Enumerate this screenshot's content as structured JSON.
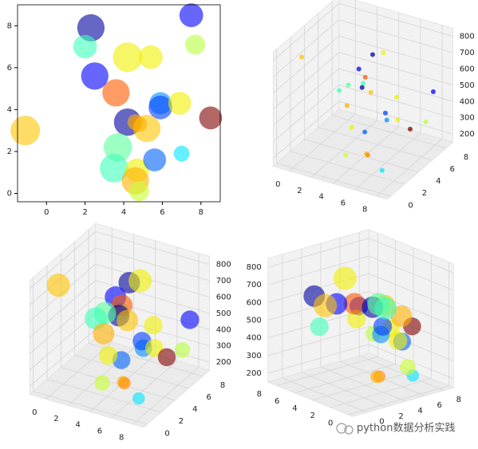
{
  "chart_data": [
    {
      "type": "scatter",
      "xlim": [
        -1.5,
        9
      ],
      "ylim": [
        -0.4,
        9
      ],
      "xticks": [
        0,
        2,
        4,
        6,
        8
      ],
      "yticks": [
        0,
        2,
        4,
        6,
        8
      ],
      "x": [
        2.3,
        7.5,
        2.0,
        7.7,
        2.5,
        4.2,
        5.4,
        3.6,
        5.9,
        5.9,
        6.9,
        8.5,
        4.2,
        4.6,
        4.8,
        5.2,
        -1.1,
        3.7,
        7.0,
        3.5,
        4.7,
        5.6,
        4.6,
        4.8
      ],
      "y": [
        7.9,
        8.5,
        7.0,
        7.1,
        5.6,
        6.5,
        6.5,
        4.8,
        4.3,
        4.1,
        4.3,
        3.6,
        3.4,
        3.4,
        3.3,
        3.1,
        3.0,
        2.2,
        1.9,
        1.2,
        1.1,
        1.6,
        0.6,
        0.1
      ],
      "sizes": [
        600,
        450,
        450,
        320,
        600,
        700,
        450,
        600,
        400,
        450,
        420,
        420,
        600,
        200,
        200,
        600,
        700,
        650,
        200,
        650,
        450,
        420,
        600,
        320
      ],
      "colors": [
        "#00009f",
        "#0000ff",
        "#3dffb9",
        "#b9ff3d",
        "#0000ff",
        "#f0f000",
        "#f0f000",
        "#ff5a00",
        "#0090ff",
        "#0040ff",
        "#f0f000",
        "#800000",
        "#00009f",
        "#ffb000",
        "#ff8c00",
        "#ffc400",
        "#ffc400",
        "#5aff9c",
        "#00e4ff",
        "#3dffb9",
        "#f0f000",
        "#0060ff",
        "#ffb000",
        "#c8ff2e"
      ]
    },
    {
      "type": "scatter3d",
      "elev": 30,
      "azim": -60,
      "xlim": [
        -1.5,
        9
      ],
      "ylim": [
        -0.5,
        9
      ],
      "zlim": [
        150,
        850
      ],
      "xticks": [
        0,
        2,
        4,
        6,
        8
      ],
      "yticks": [
        0,
        2,
        4,
        6,
        8
      ],
      "zticks": [
        200,
        300,
        400,
        500,
        600,
        700,
        800
      ],
      "x": [
        2.3,
        7.5,
        2.0,
        7.7,
        2.5,
        4.2,
        5.4,
        3.6,
        5.9,
        5.9,
        6.9,
        8.5,
        4.2,
        4.6,
        4.8,
        5.2,
        -1.1,
        3.7,
        7.0,
        3.5,
        4.7,
        5.6,
        4.6,
        4.8
      ],
      "y": [
        7.9,
        8.5,
        7.0,
        7.1,
        5.6,
        6.5,
        6.5,
        4.8,
        4.3,
        4.1,
        4.3,
        3.6,
        3.4,
        3.4,
        3.3,
        3.1,
        3.0,
        2.2,
        1.9,
        1.2,
        1.1,
        1.6,
        0.6,
        0.1
      ],
      "z": [
        600,
        450,
        450,
        320,
        600,
        700,
        450,
        600,
        400,
        450,
        420,
        420,
        600,
        200,
        200,
        600,
        700,
        650,
        200,
        650,
        450,
        420,
        600,
        320
      ],
      "colors": [
        "#00009f",
        "#0000ff",
        "#3dffb9",
        "#b9ff3d",
        "#0000ff",
        "#f0f000",
        "#f0f000",
        "#ff5a00",
        "#0090ff",
        "#0040ff",
        "#f0f000",
        "#800000",
        "#00009f",
        "#ffb000",
        "#ff8c00",
        "#ffc400",
        "#ffc400",
        "#5aff9c",
        "#00e4ff",
        "#3dffb9",
        "#f0f000",
        "#0060ff",
        "#ffb000",
        "#c8ff2e"
      ]
    },
    {
      "type": "scatter3d",
      "elev": 30,
      "azim": -60,
      "xlim": [
        -1.5,
        9
      ],
      "ylim": [
        -0.5,
        9
      ],
      "zlim": [
        150,
        850
      ],
      "xticks": [
        0,
        2,
        4,
        6,
        8
      ],
      "yticks": [
        0,
        2,
        4,
        6,
        8
      ],
      "zticks": [
        200,
        300,
        400,
        500,
        600,
        700,
        800
      ],
      "x": [
        2.3,
        7.5,
        2.0,
        7.7,
        2.5,
        4.2,
        5.4,
        3.6,
        5.9,
        5.9,
        6.9,
        8.5,
        4.2,
        4.6,
        4.8,
        5.2,
        -1.1,
        3.7,
        7.0,
        3.5,
        4.7,
        5.6,
        4.6,
        4.8
      ],
      "y": [
        7.9,
        8.5,
        7.0,
        7.1,
        5.6,
        6.5,
        6.5,
        4.8,
        4.3,
        4.1,
        4.3,
        3.6,
        3.4,
        3.4,
        3.3,
        3.1,
        3.0,
        2.2,
        1.9,
        1.2,
        1.1,
        1.6,
        0.6,
        0.1
      ],
      "z": [
        600,
        450,
        450,
        320,
        600,
        700,
        450,
        600,
        400,
        450,
        420,
        420,
        600,
        200,
        200,
        600,
        700,
        650,
        200,
        650,
        450,
        420,
        600,
        320
      ],
      "sizes": [
        600,
        450,
        450,
        320,
        600,
        700,
        450,
        600,
        400,
        450,
        420,
        420,
        600,
        200,
        200,
        600,
        700,
        650,
        200,
        650,
        450,
        420,
        600,
        320
      ],
      "colors": [
        "#00009f",
        "#0000ff",
        "#3dffb9",
        "#b9ff3d",
        "#0000ff",
        "#f0f000",
        "#f0f000",
        "#ff5a00",
        "#0090ff",
        "#0040ff",
        "#f0f000",
        "#800000",
        "#00009f",
        "#ffb000",
        "#ff8c00",
        "#ffc400",
        "#ffc400",
        "#5aff9c",
        "#00e4ff",
        "#3dffb9",
        "#f0f000",
        "#0060ff",
        "#ffb000",
        "#c8ff2e"
      ]
    },
    {
      "type": "scatter3d",
      "elev": 20,
      "azim": -130,
      "xlim": [
        -1.5,
        9
      ],
      "ylim": [
        -0.5,
        9
      ],
      "zlim": [
        150,
        850
      ],
      "xticks": [
        0,
        2,
        4,
        6,
        8
      ],
      "yticks": [
        0,
        2,
        4,
        6,
        8
      ],
      "zticks": [
        200,
        300,
        400,
        500,
        600,
        700,
        800
      ],
      "x": [
        2.3,
        7.5,
        2.0,
        7.7,
        2.5,
        4.2,
        5.4,
        3.6,
        5.9,
        5.9,
        6.9,
        8.5,
        4.2,
        4.6,
        4.8,
        5.2,
        -1.1,
        3.7,
        7.0,
        3.5,
        4.7,
        5.6,
        4.6,
        4.8
      ],
      "y": [
        7.9,
        8.5,
        7.0,
        7.1,
        5.6,
        6.5,
        6.5,
        4.8,
        4.3,
        4.1,
        4.3,
        3.6,
        3.4,
        3.4,
        3.3,
        3.1,
        3.0,
        2.2,
        1.9,
        1.2,
        1.1,
        1.6,
        0.6,
        0.1
      ],
      "z": [
        600,
        450,
        450,
        320,
        600,
        700,
        450,
        600,
        400,
        450,
        420,
        420,
        600,
        200,
        200,
        600,
        700,
        650,
        200,
        650,
        450,
        420,
        600,
        320
      ],
      "sizes": [
        600,
        450,
        450,
        320,
        600,
        700,
        450,
        600,
        400,
        450,
        420,
        420,
        600,
        200,
        200,
        600,
        700,
        650,
        200,
        650,
        450,
        420,
        600,
        320
      ],
      "colors": [
        "#00009f",
        "#0000ff",
        "#3dffb9",
        "#b9ff3d",
        "#0000ff",
        "#f0f000",
        "#f0f000",
        "#ff5a00",
        "#0090ff",
        "#0040ff",
        "#f0f000",
        "#800000",
        "#00009f",
        "#ffb000",
        "#ff8c00",
        "#ffc400",
        "#ffc400",
        "#5aff9c",
        "#00e4ff",
        "#3dffb9",
        "#f0f000",
        "#0060ff",
        "#ffb000",
        "#c8ff2e"
      ]
    }
  ],
  "watermark": "python数据分析实践"
}
